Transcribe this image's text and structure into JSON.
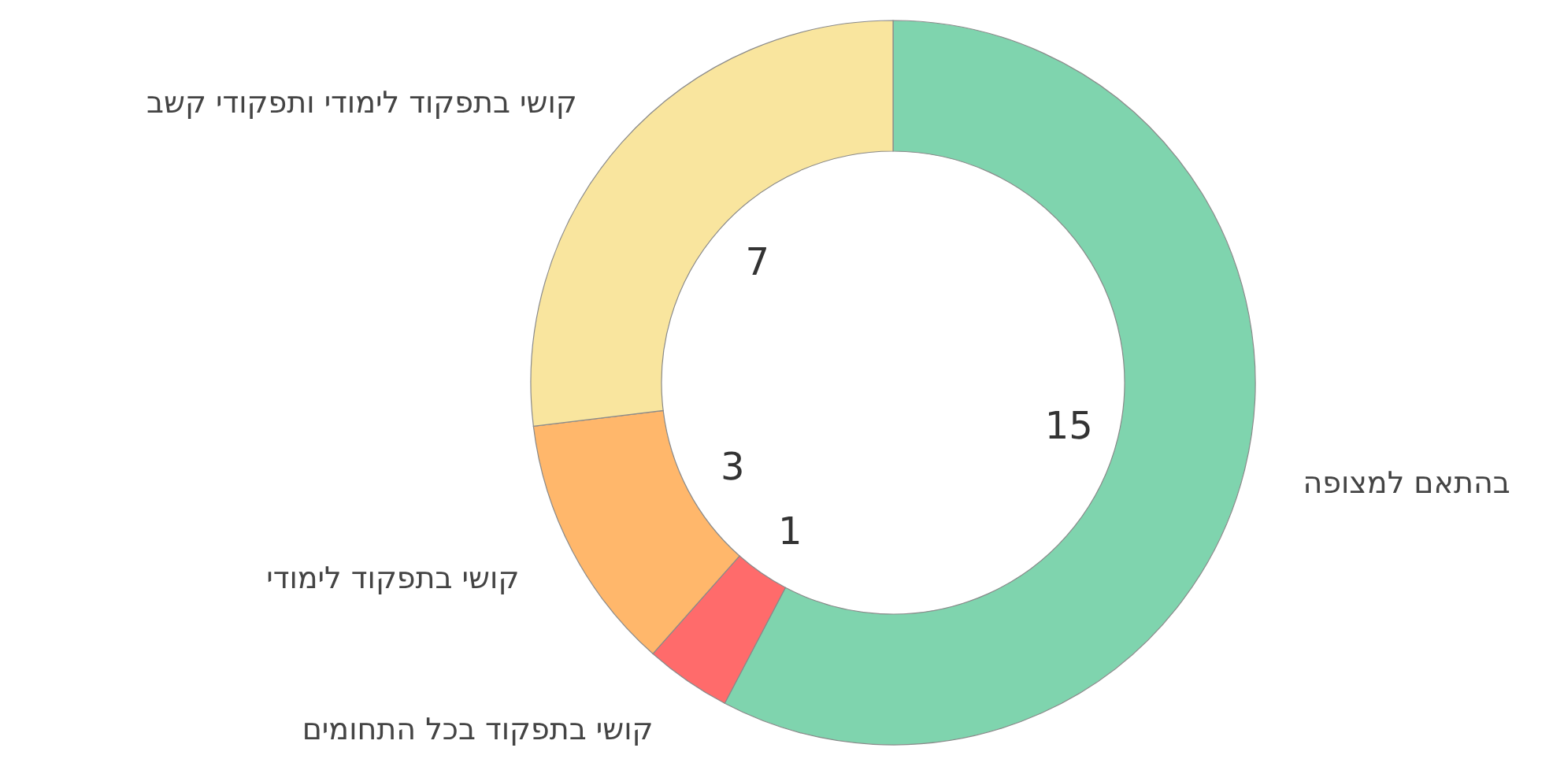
{
  "chart_data": {
    "type": "donut",
    "categories": [
      "בהתאם למצופה",
      "קושי בתפקוד בכל התחומים",
      "קושי בתפקוד לימודי",
      "קושי בתפקוד לימודי ותפקודי קשב"
    ],
    "values": [
      15,
      1,
      3,
      7
    ],
    "colors": [
      "#7fd4ae",
      "#ff6b6b",
      "#ffb76b",
      "#f9e59e"
    ],
    "data_labels": true
  }
}
